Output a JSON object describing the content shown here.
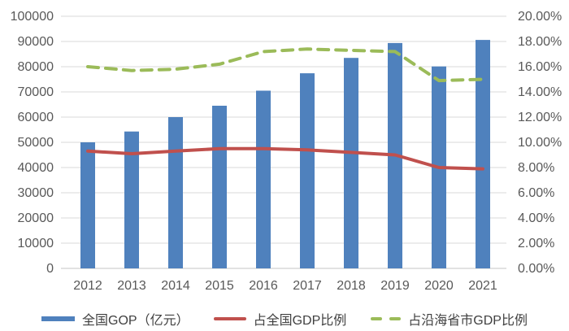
{
  "chart_data": {
    "type": "combo",
    "title": "",
    "categories": [
      "2012",
      "2013",
      "2014",
      "2015",
      "2016",
      "2017",
      "2018",
      "2019",
      "2020",
      "2021"
    ],
    "series": [
      {
        "name": "全国GOP（亿元）",
        "type": "bar",
        "axis": "left",
        "color": "#4F81BD",
        "values": [
          50000,
          54300,
          60000,
          64500,
          70500,
          77400,
          83500,
          89400,
          80100,
          90600
        ]
      },
      {
        "name": "占全国GDP比例",
        "type": "line",
        "style": "solid",
        "axis": "right",
        "color": "#C0504D",
        "values": [
          9.3,
          9.1,
          9.3,
          9.5,
          9.5,
          9.4,
          9.2,
          9.0,
          8.0,
          7.9
        ]
      },
      {
        "name": "占沿海省市GDP比例",
        "type": "line",
        "style": "dashed",
        "axis": "right",
        "color": "#9BBB59",
        "values": [
          16.0,
          15.7,
          15.8,
          16.2,
          17.2,
          17.4,
          17.3,
          17.2,
          14.9,
          15.0
        ]
      }
    ],
    "left_axis": {
      "min": 0,
      "max": 100000,
      "step": 10000,
      "tick_labels": [
        "0",
        "10000",
        "20000",
        "30000",
        "40000",
        "50000",
        "60000",
        "70000",
        "80000",
        "90000",
        "100000"
      ]
    },
    "right_axis": {
      "min": 0,
      "max": 20,
      "step": 2,
      "tick_labels": [
        "0.00%",
        "2.00%",
        "4.00%",
        "6.00%",
        "8.00%",
        "10.00%",
        "12.00%",
        "14.00%",
        "16.00%",
        "18.00%",
        "20.00%"
      ]
    },
    "grid": true,
    "legend_position": "bottom"
  },
  "colors": {
    "bar": "#4F81BD",
    "line_red": "#C0504D",
    "line_green": "#9BBB59",
    "gridline": "#D9D9D9",
    "axis_line": "#C6C6C6",
    "tick_text": "#595959",
    "legend_text": "#404040",
    "background": "#FFFFFF"
  }
}
